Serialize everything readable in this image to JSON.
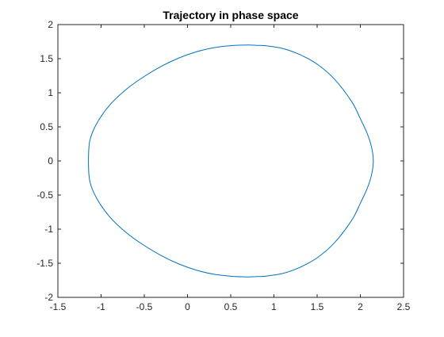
{
  "chart_data": {
    "type": "line",
    "title": "Trajectory in phase space",
    "xlabel": "",
    "ylabel": "",
    "xlim": [
      -1.5,
      2.5
    ],
    "ylim": [
      -2,
      2
    ],
    "xticks": [
      "-1.5",
      "-1",
      "-0.5",
      "0",
      "0.5",
      "1",
      "1.5",
      "2",
      "2.5"
    ],
    "yticks": [
      "2",
      "1.5",
      "1",
      "0.5",
      "0",
      "-0.5",
      "-1",
      "-1.5",
      "-2"
    ],
    "grid": false,
    "series": [
      {
        "color": "#0072bd",
        "x": [
          -1.146,
          -1.13,
          -1.05,
          -0.9,
          -0.7,
          -0.5,
          -0.3,
          -0.1,
          0.1,
          0.3,
          0.5,
          0.7,
          0.8,
          0.9,
          1.1,
          1.3,
          1.5,
          1.7,
          1.9,
          2.0,
          2.08,
          2.13,
          2.15,
          2.13,
          2.08,
          2.0,
          1.9,
          1.7,
          1.5,
          1.3,
          1.1,
          0.9,
          0.8,
          0.7,
          0.5,
          0.3,
          0.1,
          -0.1,
          -0.3,
          -0.5,
          -0.7,
          -0.9,
          -1.05,
          -1.13,
          -1.146
        ],
        "y": [
          0.0,
          0.3,
          0.55,
          0.82,
          1.06,
          1.24,
          1.39,
          1.51,
          1.6,
          1.66,
          1.69,
          1.7,
          1.695,
          1.69,
          1.65,
          1.56,
          1.42,
          1.2,
          0.87,
          0.62,
          0.4,
          0.2,
          0.0,
          -0.2,
          -0.4,
          -0.62,
          -0.87,
          -1.2,
          -1.42,
          -1.56,
          -1.65,
          -1.69,
          -1.695,
          -1.7,
          -1.69,
          -1.66,
          -1.6,
          -1.51,
          -1.39,
          -1.24,
          -1.06,
          -0.82,
          -0.55,
          -0.3,
          0.0
        ]
      }
    ]
  }
}
